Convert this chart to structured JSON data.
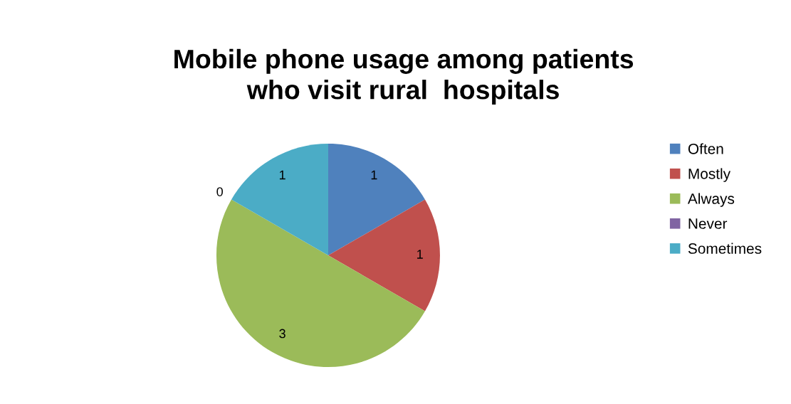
{
  "chart_data": {
    "type": "pie",
    "title": "Mobile phone usage among patients\nwho visit rural  hospitals",
    "categories": [
      "Often",
      "Mostly",
      "Always",
      "Never",
      "Sometimes"
    ],
    "values": [
      1,
      1,
      3,
      0,
      1
    ],
    "colors": [
      "#4f81bd",
      "#c0504d",
      "#9bbb59",
      "#8064a2",
      "#4bacc6"
    ],
    "value_labels": [
      "1",
      "1",
      "3",
      "0",
      "1"
    ],
    "legend": "right"
  }
}
